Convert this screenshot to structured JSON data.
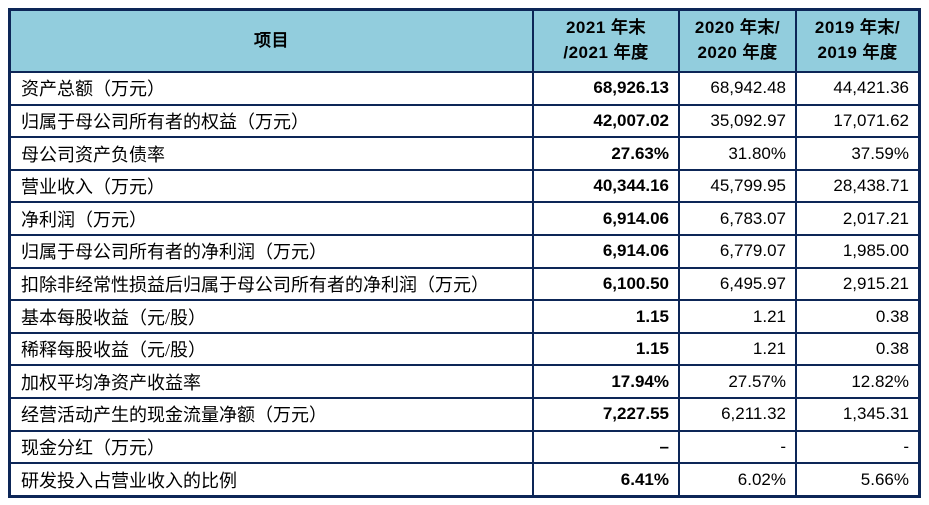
{
  "colors": {
    "border": "#0d2657",
    "header_background": "#92cddd",
    "page_background": "#ffffff",
    "text": "#000000"
  },
  "table": {
    "header": {
      "item": "项目",
      "col2021": {
        "line1": "2021 年末",
        "line2": "/2021 年度"
      },
      "col2020": {
        "line1": "2020 年末/",
        "line2": "2020 年度"
      },
      "col2019": {
        "line1": "2019 年末/",
        "line2": "2019 年度"
      }
    },
    "rows": [
      {
        "label": "资产总额（万元）",
        "v2021": "68,926.13",
        "v2020": "68,942.48",
        "v2019": "44,421.36"
      },
      {
        "label": "归属于母公司所有者的权益（万元）",
        "v2021": "42,007.02",
        "v2020": "35,092.97",
        "v2019": "17,071.62"
      },
      {
        "label": "母公司资产负债率",
        "v2021": "27.63%",
        "v2020": "31.80%",
        "v2019": "37.59%"
      },
      {
        "label": "营业收入（万元）",
        "v2021": "40,344.16",
        "v2020": "45,799.95",
        "v2019": "28,438.71"
      },
      {
        "label": "净利润（万元）",
        "v2021": "6,914.06",
        "v2020": "6,783.07",
        "v2019": "2,017.21"
      },
      {
        "label": "归属于母公司所有者的净利润（万元）",
        "v2021": "6,914.06",
        "v2020": "6,779.07",
        "v2019": "1,985.00"
      },
      {
        "label": "扣除非经常性损益后归属于母公司所有者的净利润（万元）",
        "v2021": "6,100.50",
        "v2020": "6,495.97",
        "v2019": "2,915.21"
      },
      {
        "label": "基本每股收益（元/股）",
        "v2021": "1.15",
        "v2020": "1.21",
        "v2019": "0.38"
      },
      {
        "label": "稀释每股收益（元/股）",
        "v2021": "1.15",
        "v2020": "1.21",
        "v2019": "0.38"
      },
      {
        "label": "加权平均净资产收益率",
        "v2021": "17.94%",
        "v2020": "27.57%",
        "v2019": "12.82%"
      },
      {
        "label": "经营活动产生的现金流量净额（万元）",
        "v2021": "7,227.55",
        "v2020": "6,211.32",
        "v2019": "1,345.31"
      },
      {
        "label": "现金分红（万元）",
        "v2021": "–",
        "v2020": "-",
        "v2019": "-"
      },
      {
        "label": "研发投入占营业收入的比例",
        "v2021": "6.41%",
        "v2020": "6.02%",
        "v2019": "5.66%"
      }
    ]
  }
}
